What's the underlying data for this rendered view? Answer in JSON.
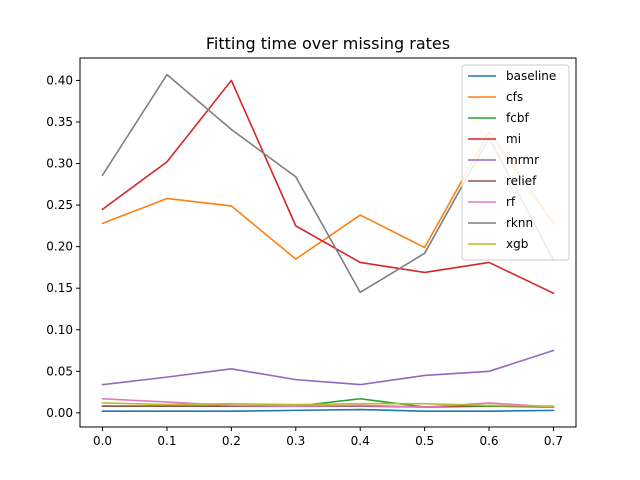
{
  "chart_data": {
    "type": "line",
    "title": "Fitting time over missing rates",
    "xlabel": "",
    "ylabel": "",
    "x": [
      0.0,
      0.1,
      0.2,
      0.3,
      0.4,
      0.5,
      0.6,
      0.7
    ],
    "xticks": [
      "0.0",
      "0.1",
      "0.2",
      "0.3",
      "0.4",
      "0.5",
      "0.6",
      "0.7"
    ],
    "xlim": [
      -0.035,
      0.735
    ],
    "ylim": [
      -0.017,
      0.427
    ],
    "yticks": [
      "0.00",
      "0.05",
      "0.10",
      "0.15",
      "0.20",
      "0.25",
      "0.30",
      "0.35",
      "0.40"
    ],
    "ytick_values": [
      0,
      0.05,
      0.1,
      0.15,
      0.2,
      0.25,
      0.3,
      0.35,
      0.4
    ],
    "grid": false,
    "legend": "top-right",
    "series": [
      {
        "name": "baseline",
        "color": "#1f77b4",
        "values": [
          0.002,
          0.002,
          0.002,
          0.003,
          0.004,
          0.002,
          0.002,
          0.003
        ]
      },
      {
        "name": "cfs",
        "color": "#ff7f0e",
        "values": [
          0.228,
          0.258,
          0.249,
          0.185,
          0.238,
          0.199,
          0.338,
          0.228
        ]
      },
      {
        "name": "fcbf",
        "color": "#2ca02c",
        "values": [
          0.008,
          0.008,
          0.008,
          0.008,
          0.017,
          0.007,
          0.008,
          0.007
        ]
      },
      {
        "name": "mi",
        "color": "#d62728",
        "values": [
          0.245,
          0.302,
          0.4,
          0.225,
          0.181,
          0.169,
          0.181,
          0.144
        ]
      },
      {
        "name": "mrmr",
        "color": "#9467bd",
        "values": [
          0.034,
          0.043,
          0.053,
          0.04,
          0.034,
          0.045,
          0.05,
          0.075
        ]
      },
      {
        "name": "relief",
        "color": "#8c564b",
        "values": [
          0.008,
          0.008,
          0.008,
          0.008,
          0.008,
          0.007,
          0.009,
          0.007
        ]
      },
      {
        "name": "rf",
        "color": "#e377c2",
        "values": [
          0.017,
          0.013,
          0.009,
          0.008,
          0.009,
          0.007,
          0.012,
          0.007
        ]
      },
      {
        "name": "rknn",
        "color": "#7f7f7f",
        "values": [
          0.286,
          0.407,
          0.341,
          0.284,
          0.145,
          0.192,
          0.331,
          0.184
        ]
      },
      {
        "name": "xgb",
        "color": "#bcbd22",
        "values": [
          0.012,
          0.01,
          0.011,
          0.01,
          0.011,
          0.011,
          0.009,
          0.008
        ]
      }
    ]
  }
}
